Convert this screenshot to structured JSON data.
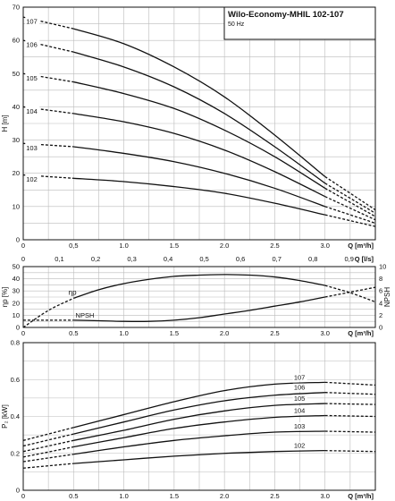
{
  "title": "Wilo-Economy-MHIL 102-107",
  "subtitle": "50 Hz",
  "chart_data": [
    {
      "type": "line",
      "name": "head",
      "ylabel": "H [m]",
      "xlabel": "Q [m³/h]",
      "xlabel2": "Q [l/s]",
      "xlim": [
        0,
        3.5
      ],
      "ylim": [
        0,
        70
      ],
      "xticks": [
        0,
        0.5,
        1.0,
        1.5,
        2.0,
        2.5,
        3.0
      ],
      "xtick_labels": [
        "0",
        "0,5",
        "1.0",
        "1.5",
        "2.0",
        "2.5",
        "3.0"
      ],
      "yticks": [
        0,
        10,
        20,
        30,
        40,
        50,
        60,
        70
      ],
      "x2ticks": [
        0,
        0.1,
        0.2,
        0.3,
        0.4,
        0.5,
        0.6,
        0.7,
        0.8,
        0.9
      ],
      "x2tick_labels": [
        "0",
        "0,1",
        "0,2",
        "0,3",
        "0,4",
        "0,5",
        "0,6",
        "0,7",
        "0,8",
        "0,9"
      ],
      "grid": true,
      "series": [
        {
          "name": "107",
          "x": [
            0,
            0.5,
            1.0,
            1.5,
            2.0,
            2.5,
            3.0,
            3.5
          ],
          "y": [
            67,
            63.5,
            59,
            52,
            43,
            31.5,
            19,
            9
          ]
        },
        {
          "name": "106",
          "x": [
            0,
            0.5,
            1.0,
            1.5,
            2.0,
            2.5,
            3.0,
            3.5
          ],
          "y": [
            60,
            56.5,
            52,
            46,
            38,
            28,
            17,
            8
          ]
        },
        {
          "name": "105",
          "x": [
            0,
            0.5,
            1.0,
            1.5,
            2.0,
            2.5,
            3.0,
            3.5
          ],
          "y": [
            50,
            47.5,
            44,
            39.5,
            33,
            25,
            15.5,
            7
          ]
        },
        {
          "name": "104",
          "x": [
            0,
            0.5,
            1.0,
            1.5,
            2.0,
            2.5,
            3.0,
            3.5
          ],
          "y": [
            40,
            38,
            35.5,
            32,
            27,
            20.5,
            13,
            6
          ]
        },
        {
          "name": "103",
          "x": [
            0,
            0.5,
            1.0,
            1.5,
            2.0,
            2.5,
            3.0,
            3.5
          ],
          "y": [
            29,
            28,
            26,
            23.5,
            20,
            15.5,
            10,
            5
          ]
        },
        {
          "name": "102",
          "x": [
            0,
            0.5,
            1.0,
            1.5,
            2.0,
            2.5,
            3.0,
            3.5
          ],
          "y": [
            19.5,
            18.5,
            17.5,
            16,
            14,
            11,
            7.5,
            4
          ]
        }
      ]
    },
    {
      "type": "line",
      "name": "efficiency",
      "ylabel": "ηp [%]",
      "ylabel_right": "NPSH",
      "xlabel": "Q [m³/h]",
      "xlim": [
        0,
        3.5
      ],
      "ylim": [
        0,
        50
      ],
      "ylim_right": [
        0,
        10
      ],
      "xticks": [
        0,
        0.5,
        1.0,
        1.5,
        2.0,
        2.5,
        3.0
      ],
      "xtick_labels": [
        "0",
        "0.5",
        "1.0",
        "1.5",
        "2.0",
        "2.5",
        "3.0"
      ],
      "yticks": [
        0,
        10,
        20,
        30,
        40,
        50
      ],
      "yticks_right": [
        0,
        2,
        4,
        6,
        8,
        10
      ],
      "grid": true,
      "series": [
        {
          "name": "ηp",
          "x": [
            0,
            0.25,
            0.5,
            0.75,
            1.0,
            1.25,
            1.5,
            1.75,
            2.0,
            2.25,
            2.5,
            2.75,
            3.0,
            3.25,
            3.5
          ],
          "y": [
            0,
            14,
            24,
            31,
            36,
            39.5,
            42,
            43,
            43.5,
            43,
            41.5,
            38.5,
            34.5,
            28.5,
            21
          ]
        },
        {
          "name": "NPSH",
          "x": [
            0,
            0.5,
            0.75,
            1.0,
            1.25,
            1.5,
            1.75,
            2.0,
            2.25,
            2.5,
            2.75,
            3.0,
            3.25,
            3.5
          ],
          "y": [
            1.2,
            1.2,
            1.1,
            1.0,
            1.0,
            1.2,
            1.6,
            2.2,
            2.8,
            3.5,
            4.2,
            5.0,
            5.8,
            6.6
          ]
        }
      ]
    },
    {
      "type": "line",
      "name": "power",
      "ylabel": "P₂ [kW]",
      "xlabel": "Q [m³/h]",
      "xlim": [
        0,
        3.5
      ],
      "ylim": [
        0,
        0.8
      ],
      "xticks": [
        0,
        0.5,
        1.0,
        1.5,
        2.0,
        2.5,
        3.0
      ],
      "xtick_labels": [
        "0",
        "0.5",
        "1.0",
        "1.5",
        "2.0",
        "2.5",
        "3.0"
      ],
      "yticks": [
        0,
        0.2,
        0.4,
        0.6,
        0.8
      ],
      "ytick_labels": [
        "0",
        "0.2",
        "0.4",
        "0.6",
        "0.8"
      ],
      "grid": true,
      "series": [
        {
          "name": "107",
          "x": [
            0,
            0.5,
            1.0,
            1.5,
            2.0,
            2.5,
            3.0,
            3.5
          ],
          "y": [
            0.27,
            0.34,
            0.41,
            0.48,
            0.54,
            0.575,
            0.585,
            0.57
          ]
        },
        {
          "name": "106",
          "x": [
            0,
            0.5,
            1.0,
            1.5,
            2.0,
            2.5,
            3.0,
            3.5
          ],
          "y": [
            0.24,
            0.305,
            0.37,
            0.435,
            0.485,
            0.515,
            0.53,
            0.52
          ]
        },
        {
          "name": "105",
          "x": [
            0,
            0.5,
            1.0,
            1.5,
            2.0,
            2.5,
            3.0,
            3.5
          ],
          "y": [
            0.21,
            0.27,
            0.325,
            0.385,
            0.43,
            0.46,
            0.47,
            0.465
          ]
        },
        {
          "name": "104",
          "x": [
            0,
            0.5,
            1.0,
            1.5,
            2.0,
            2.5,
            3.0,
            3.5
          ],
          "y": [
            0.18,
            0.235,
            0.285,
            0.335,
            0.37,
            0.395,
            0.405,
            0.4
          ]
        },
        {
          "name": "103",
          "x": [
            0,
            0.5,
            1.0,
            1.5,
            2.0,
            2.5,
            3.0,
            3.5
          ],
          "y": [
            0.155,
            0.195,
            0.235,
            0.27,
            0.295,
            0.315,
            0.32,
            0.315
          ]
        },
        {
          "name": "102",
          "x": [
            0,
            0.5,
            1.0,
            1.5,
            2.0,
            2.5,
            3.0,
            3.5
          ],
          "y": [
            0.12,
            0.145,
            0.165,
            0.185,
            0.2,
            0.21,
            0.215,
            0.21
          ]
        }
      ]
    }
  ]
}
